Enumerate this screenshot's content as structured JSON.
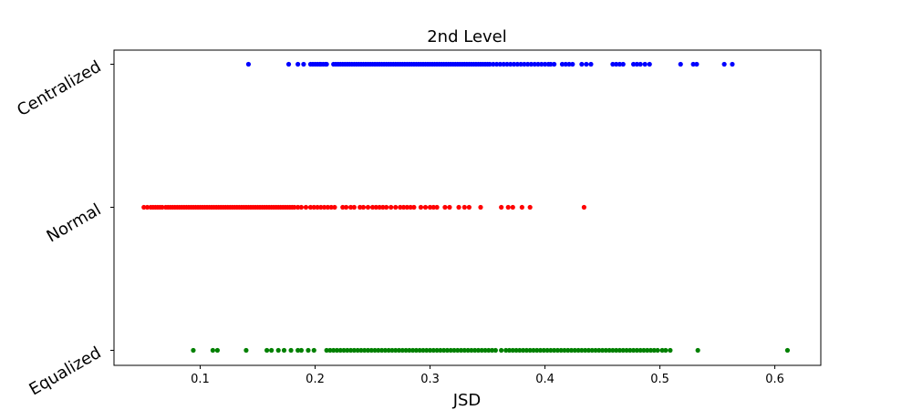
{
  "chart_data": {
    "type": "scatter",
    "title": "2nd Level",
    "xlabel": "JSD",
    "ylabel": "",
    "xlim": [
      0.025,
      0.64
    ],
    "xticks": [
      0.1,
      0.2,
      0.3,
      0.4,
      0.5,
      0.6
    ],
    "categories": [
      "Centralized",
      "Normal",
      "Equalized"
    ],
    "grid": false,
    "legend": "none",
    "series": [
      {
        "category": "Centralized",
        "color": "#0000ff",
        "values": [
          0.142,
          0.177,
          0.185,
          0.19,
          0.196,
          0.198,
          0.2,
          0.202,
          0.204,
          0.205,
          0.207,
          0.209,
          0.21,
          0.216,
          0.218,
          0.22,
          0.222,
          0.224,
          0.226,
          0.228,
          0.23,
          0.232,
          0.234,
          0.236,
          0.238,
          0.24,
          0.242,
          0.244,
          0.246,
          0.248,
          0.25,
          0.252,
          0.254,
          0.256,
          0.258,
          0.26,
          0.262,
          0.264,
          0.266,
          0.268,
          0.27,
          0.272,
          0.274,
          0.276,
          0.278,
          0.28,
          0.282,
          0.284,
          0.286,
          0.288,
          0.29,
          0.292,
          0.294,
          0.296,
          0.298,
          0.3,
          0.302,
          0.304,
          0.306,
          0.308,
          0.31,
          0.312,
          0.314,
          0.316,
          0.318,
          0.32,
          0.322,
          0.324,
          0.326,
          0.328,
          0.33,
          0.332,
          0.334,
          0.336,
          0.338,
          0.34,
          0.342,
          0.344,
          0.346,
          0.348,
          0.35,
          0.352,
          0.355,
          0.358,
          0.361,
          0.364,
          0.367,
          0.37,
          0.373,
          0.376,
          0.379,
          0.382,
          0.385,
          0.388,
          0.391,
          0.394,
          0.397,
          0.4,
          0.403,
          0.405,
          0.408,
          0.415,
          0.418,
          0.421,
          0.424,
          0.432,
          0.436,
          0.44,
          0.459,
          0.462,
          0.465,
          0.468,
          0.477,
          0.48,
          0.483,
          0.487,
          0.491,
          0.518,
          0.529,
          0.532,
          0.556,
          0.563
        ]
      },
      {
        "category": "Normal",
        "color": "#ff0000",
        "values": [
          0.051,
          0.054,
          0.057,
          0.059,
          0.061,
          0.063,
          0.065,
          0.067,
          0.07,
          0.072,
          0.074,
          0.076,
          0.078,
          0.08,
          0.082,
          0.084,
          0.086,
          0.088,
          0.09,
          0.092,
          0.094,
          0.096,
          0.098,
          0.1,
          0.102,
          0.104,
          0.106,
          0.108,
          0.11,
          0.112,
          0.114,
          0.116,
          0.118,
          0.12,
          0.122,
          0.124,
          0.126,
          0.128,
          0.13,
          0.132,
          0.134,
          0.136,
          0.138,
          0.14,
          0.142,
          0.144,
          0.146,
          0.148,
          0.15,
          0.152,
          0.154,
          0.156,
          0.158,
          0.16,
          0.162,
          0.164,
          0.166,
          0.168,
          0.17,
          0.172,
          0.174,
          0.176,
          0.178,
          0.18,
          0.182,
          0.185,
          0.188,
          0.192,
          0.196,
          0.199,
          0.202,
          0.205,
          0.208,
          0.211,
          0.214,
          0.217,
          0.224,
          0.227,
          0.231,
          0.234,
          0.239,
          0.242,
          0.246,
          0.25,
          0.253,
          0.256,
          0.259,
          0.262,
          0.266,
          0.27,
          0.274,
          0.277,
          0.28,
          0.283,
          0.286,
          0.292,
          0.296,
          0.3,
          0.303,
          0.306,
          0.313,
          0.317,
          0.325,
          0.33,
          0.334,
          0.344,
          0.362,
          0.368,
          0.372,
          0.38,
          0.387,
          0.434
        ]
      },
      {
        "category": "Equalized",
        "color": "#008000",
        "values": [
          0.094,
          0.111,
          0.115,
          0.14,
          0.158,
          0.162,
          0.168,
          0.173,
          0.179,
          0.185,
          0.188,
          0.194,
          0.199,
          0.21,
          0.213,
          0.216,
          0.219,
          0.222,
          0.225,
          0.228,
          0.231,
          0.234,
          0.237,
          0.24,
          0.243,
          0.246,
          0.249,
          0.252,
          0.255,
          0.258,
          0.261,
          0.264,
          0.267,
          0.27,
          0.273,
          0.276,
          0.279,
          0.282,
          0.285,
          0.288,
          0.291,
          0.294,
          0.297,
          0.3,
          0.303,
          0.306,
          0.309,
          0.312,
          0.315,
          0.318,
          0.321,
          0.324,
          0.327,
          0.33,
          0.333,
          0.336,
          0.339,
          0.342,
          0.345,
          0.348,
          0.351,
          0.354,
          0.357,
          0.362,
          0.366,
          0.369,
          0.372,
          0.375,
          0.378,
          0.381,
          0.384,
          0.387,
          0.39,
          0.393,
          0.396,
          0.399,
          0.402,
          0.405,
          0.408,
          0.411,
          0.414,
          0.417,
          0.42,
          0.423,
          0.426,
          0.429,
          0.432,
          0.435,
          0.438,
          0.441,
          0.444,
          0.447,
          0.45,
          0.453,
          0.456,
          0.459,
          0.462,
          0.465,
          0.468,
          0.471,
          0.474,
          0.477,
          0.48,
          0.483,
          0.486,
          0.489,
          0.492,
          0.495,
          0.498,
          0.502,
          0.505,
          0.509,
          0.533,
          0.611
        ]
      }
    ]
  }
}
